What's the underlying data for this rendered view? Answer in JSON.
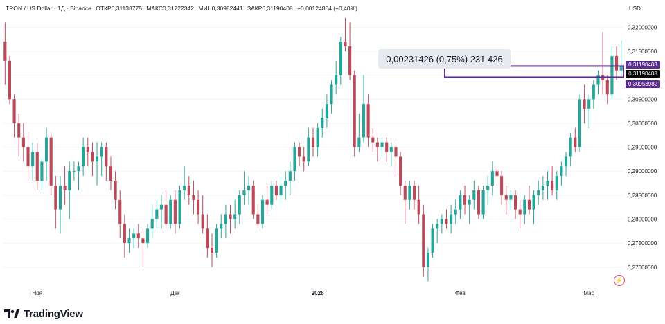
{
  "header": {
    "symbol": "TRON / US Dollar · 1Д · Binance",
    "open": "ОТКР0,31133775",
    "high": "МАКС0,31722342",
    "low": "МИН0,30982441",
    "close": "ЗАКР0,31190408",
    "change": "+0,00124864 (+0,40%)"
  },
  "currency_label": "USD",
  "measure_label": "0,00231426 (0,75%) 231 426",
  "price_tags": {
    "upper": "0,31190408",
    "current": "0,31190408",
    "lower": "0,30958982",
    "upper_color": "#5b2d8e",
    "current_color": "#000000",
    "lower_color": "#5b2d8e"
  },
  "brand": "TradingView",
  "colors": {
    "up": "#26a69a",
    "down": "#b94a5a",
    "axis_text": "#131722",
    "measure_box": "#5b2d8e"
  },
  "chart_data": {
    "type": "candlestick",
    "ylim": [
      0.2665,
      0.3225
    ],
    "y_ticks": [
      "0,32000000",
      "0,31500000",
      "0,31000000",
      "0,30500000",
      "0,30000000",
      "0,29500000",
      "0,29000000",
      "0,28500000",
      "0,28000000",
      "0,27500000",
      "0,27000000"
    ],
    "y_tick_values": [
      0.32,
      0.315,
      0.31,
      0.305,
      0.3,
      0.295,
      0.29,
      0.285,
      0.28,
      0.275,
      0.27
    ],
    "x_labels": [
      {
        "label": "Ноя",
        "index": 7,
        "bold": false
      },
      {
        "label": "Дек",
        "index": 37,
        "bold": false
      },
      {
        "label": "2026",
        "index": 68,
        "bold": true
      },
      {
        "label": "Фев",
        "index": 99,
        "bold": false
      },
      {
        "label": "Мар",
        "index": 127,
        "bold": false
      }
    ],
    "measure_range": [
      0.30958982,
      0.31190408
    ],
    "candles": [
      [
        0.317,
        0.321,
        0.308,
        0.313
      ],
      [
        0.313,
        0.314,
        0.304,
        0.305
      ],
      [
        0.305,
        0.306,
        0.297,
        0.3
      ],
      [
        0.3,
        0.302,
        0.293,
        0.297
      ],
      [
        0.297,
        0.3,
        0.292,
        0.295
      ],
      [
        0.295,
        0.298,
        0.288,
        0.291
      ],
      [
        0.291,
        0.296,
        0.288,
        0.294
      ],
      [
        0.294,
        0.296,
        0.286,
        0.288
      ],
      [
        0.288,
        0.293,
        0.286,
        0.292
      ],
      [
        0.292,
        0.299,
        0.288,
        0.297
      ],
      [
        0.297,
        0.298,
        0.285,
        0.287
      ],
      [
        0.287,
        0.289,
        0.278,
        0.282
      ],
      [
        0.282,
        0.289,
        0.277,
        0.287
      ],
      [
        0.287,
        0.291,
        0.283,
        0.286
      ],
      [
        0.286,
        0.292,
        0.28,
        0.29
      ],
      [
        0.29,
        0.292,
        0.288,
        0.29
      ],
      [
        0.29,
        0.292,
        0.286,
        0.291
      ],
      [
        0.291,
        0.297,
        0.289,
        0.295
      ],
      [
        0.295,
        0.297,
        0.291,
        0.294
      ],
      [
        0.294,
        0.296,
        0.289,
        0.292
      ],
      [
        0.292,
        0.296,
        0.287,
        0.293
      ],
      [
        0.293,
        0.296,
        0.289,
        0.295
      ],
      [
        0.295,
        0.296,
        0.288,
        0.291
      ],
      [
        0.291,
        0.293,
        0.286,
        0.288
      ],
      [
        0.288,
        0.29,
        0.282,
        0.284
      ],
      [
        0.284,
        0.286,
        0.276,
        0.279
      ],
      [
        0.279,
        0.281,
        0.272,
        0.275
      ],
      [
        0.275,
        0.278,
        0.273,
        0.276
      ],
      [
        0.276,
        0.278,
        0.274,
        0.277
      ],
      [
        0.277,
        0.279,
        0.274,
        0.276
      ],
      [
        0.276,
        0.278,
        0.27,
        0.275
      ],
      [
        0.275,
        0.279,
        0.274,
        0.278
      ],
      [
        0.278,
        0.283,
        0.276,
        0.28
      ],
      [
        0.28,
        0.284,
        0.278,
        0.282
      ],
      [
        0.282,
        0.285,
        0.278,
        0.283
      ],
      [
        0.283,
        0.286,
        0.278,
        0.279
      ],
      [
        0.279,
        0.285,
        0.278,
        0.284
      ],
      [
        0.284,
        0.286,
        0.277,
        0.279
      ],
      [
        0.279,
        0.287,
        0.278,
        0.286
      ],
      [
        0.286,
        0.291,
        0.284,
        0.287
      ],
      [
        0.287,
        0.289,
        0.283,
        0.285
      ],
      [
        0.285,
        0.288,
        0.281,
        0.284
      ],
      [
        0.284,
        0.286,
        0.279,
        0.281
      ],
      [
        0.281,
        0.285,
        0.277,
        0.278
      ],
      [
        0.278,
        0.281,
        0.272,
        0.274
      ],
      [
        0.274,
        0.277,
        0.27,
        0.273
      ],
      [
        0.273,
        0.279,
        0.272,
        0.278
      ],
      [
        0.278,
        0.281,
        0.276,
        0.279
      ],
      [
        0.279,
        0.283,
        0.276,
        0.281
      ],
      [
        0.281,
        0.283,
        0.277,
        0.28
      ],
      [
        0.28,
        0.284,
        0.278,
        0.281
      ],
      [
        0.281,
        0.286,
        0.279,
        0.285
      ],
      [
        0.285,
        0.29,
        0.283,
        0.286
      ],
      [
        0.286,
        0.289,
        0.283,
        0.287
      ],
      [
        0.287,
        0.288,
        0.28,
        0.281
      ],
      [
        0.281,
        0.283,
        0.278,
        0.279
      ],
      [
        0.279,
        0.285,
        0.278,
        0.284
      ],
      [
        0.284,
        0.287,
        0.281,
        0.283
      ],
      [
        0.283,
        0.288,
        0.282,
        0.287
      ],
      [
        0.287,
        0.288,
        0.284,
        0.285
      ],
      [
        0.285,
        0.289,
        0.283,
        0.287
      ],
      [
        0.287,
        0.29,
        0.284,
        0.288
      ],
      [
        0.288,
        0.292,
        0.285,
        0.29
      ],
      [
        0.29,
        0.296,
        0.288,
        0.295
      ],
      [
        0.295,
        0.296,
        0.291,
        0.293
      ],
      [
        0.293,
        0.295,
        0.29,
        0.292
      ],
      [
        0.292,
        0.299,
        0.291,
        0.297
      ],
      [
        0.297,
        0.299,
        0.293,
        0.295
      ],
      [
        0.295,
        0.3,
        0.293,
        0.299
      ],
      [
        0.299,
        0.303,
        0.297,
        0.301
      ],
      [
        0.301,
        0.306,
        0.299,
        0.304
      ],
      [
        0.304,
        0.309,
        0.302,
        0.308
      ],
      [
        0.308,
        0.313,
        0.306,
        0.31
      ],
      [
        0.31,
        0.318,
        0.308,
        0.317
      ],
      [
        0.317,
        0.322,
        0.315,
        0.316
      ],
      [
        0.316,
        0.321,
        0.309,
        0.31
      ],
      [
        0.31,
        0.311,
        0.293,
        0.295
      ],
      [
        0.295,
        0.302,
        0.294,
        0.297
      ],
      [
        0.297,
        0.31,
        0.296,
        0.304
      ],
      [
        0.304,
        0.306,
        0.295,
        0.297
      ],
      [
        0.297,
        0.299,
        0.294,
        0.296
      ],
      [
        0.296,
        0.297,
        0.292,
        0.295
      ],
      [
        0.295,
        0.297,
        0.293,
        0.296
      ],
      [
        0.296,
        0.297,
        0.292,
        0.294
      ],
      [
        0.294,
        0.296,
        0.291,
        0.295
      ],
      [
        0.295,
        0.296,
        0.289,
        0.293
      ],
      [
        0.293,
        0.294,
        0.285,
        0.287
      ],
      [
        0.287,
        0.288,
        0.279,
        0.284
      ],
      [
        0.284,
        0.288,
        0.282,
        0.287
      ],
      [
        0.287,
        0.288,
        0.282,
        0.284
      ],
      [
        0.284,
        0.287,
        0.279,
        0.281
      ],
      [
        0.281,
        0.283,
        0.268,
        0.27
      ],
      [
        0.27,
        0.274,
        0.267,
        0.273
      ],
      [
        0.273,
        0.279,
        0.272,
        0.278
      ],
      [
        0.278,
        0.28,
        0.275,
        0.279
      ],
      [
        0.279,
        0.281,
        0.277,
        0.28
      ],
      [
        0.28,
        0.282,
        0.278,
        0.279
      ],
      [
        0.279,
        0.283,
        0.277,
        0.281
      ],
      [
        0.281,
        0.284,
        0.279,
        0.282
      ],
      [
        0.282,
        0.286,
        0.28,
        0.285
      ],
      [
        0.285,
        0.287,
        0.281,
        0.283
      ],
      [
        0.283,
        0.285,
        0.279,
        0.284
      ],
      [
        0.284,
        0.288,
        0.282,
        0.286
      ],
      [
        0.286,
        0.287,
        0.28,
        0.281
      ],
      [
        0.281,
        0.287,
        0.28,
        0.286
      ],
      [
        0.286,
        0.289,
        0.283,
        0.287
      ],
      [
        0.287,
        0.292,
        0.285,
        0.29
      ],
      [
        0.29,
        0.291,
        0.287,
        0.289
      ],
      [
        0.289,
        0.29,
        0.283,
        0.285
      ],
      [
        0.285,
        0.287,
        0.281,
        0.284
      ],
      [
        0.284,
        0.286,
        0.282,
        0.285
      ],
      [
        0.285,
        0.286,
        0.28,
        0.282
      ],
      [
        0.282,
        0.284,
        0.278,
        0.281
      ],
      [
        0.281,
        0.285,
        0.279,
        0.284
      ],
      [
        0.284,
        0.287,
        0.281,
        0.282
      ],
      [
        0.282,
        0.286,
        0.279,
        0.285
      ],
      [
        0.285,
        0.288,
        0.283,
        0.286
      ],
      [
        0.286,
        0.289,
        0.284,
        0.287
      ],
      [
        0.287,
        0.29,
        0.284,
        0.288
      ],
      [
        0.288,
        0.291,
        0.285,
        0.286
      ],
      [
        0.286,
        0.29,
        0.284,
        0.289
      ],
      [
        0.289,
        0.292,
        0.287,
        0.291
      ],
      [
        0.291,
        0.294,
        0.289,
        0.293
      ],
      [
        0.293,
        0.298,
        0.291,
        0.297
      ],
      [
        0.297,
        0.299,
        0.294,
        0.295
      ],
      [
        0.295,
        0.306,
        0.294,
        0.305
      ],
      [
        0.305,
        0.308,
        0.3,
        0.303
      ],
      [
        0.303,
        0.306,
        0.299,
        0.305
      ],
      [
        0.305,
        0.309,
        0.303,
        0.308
      ],
      [
        0.308,
        0.311,
        0.306,
        0.31
      ],
      [
        0.31,
        0.319,
        0.306,
        0.309
      ],
      [
        0.309,
        0.31,
        0.304,
        0.306
      ],
      [
        0.306,
        0.316,
        0.305,
        0.314
      ],
      [
        0.314,
        0.316,
        0.309,
        0.311
      ],
      [
        0.311,
        0.3172,
        0.3098,
        0.3119
      ]
    ]
  }
}
